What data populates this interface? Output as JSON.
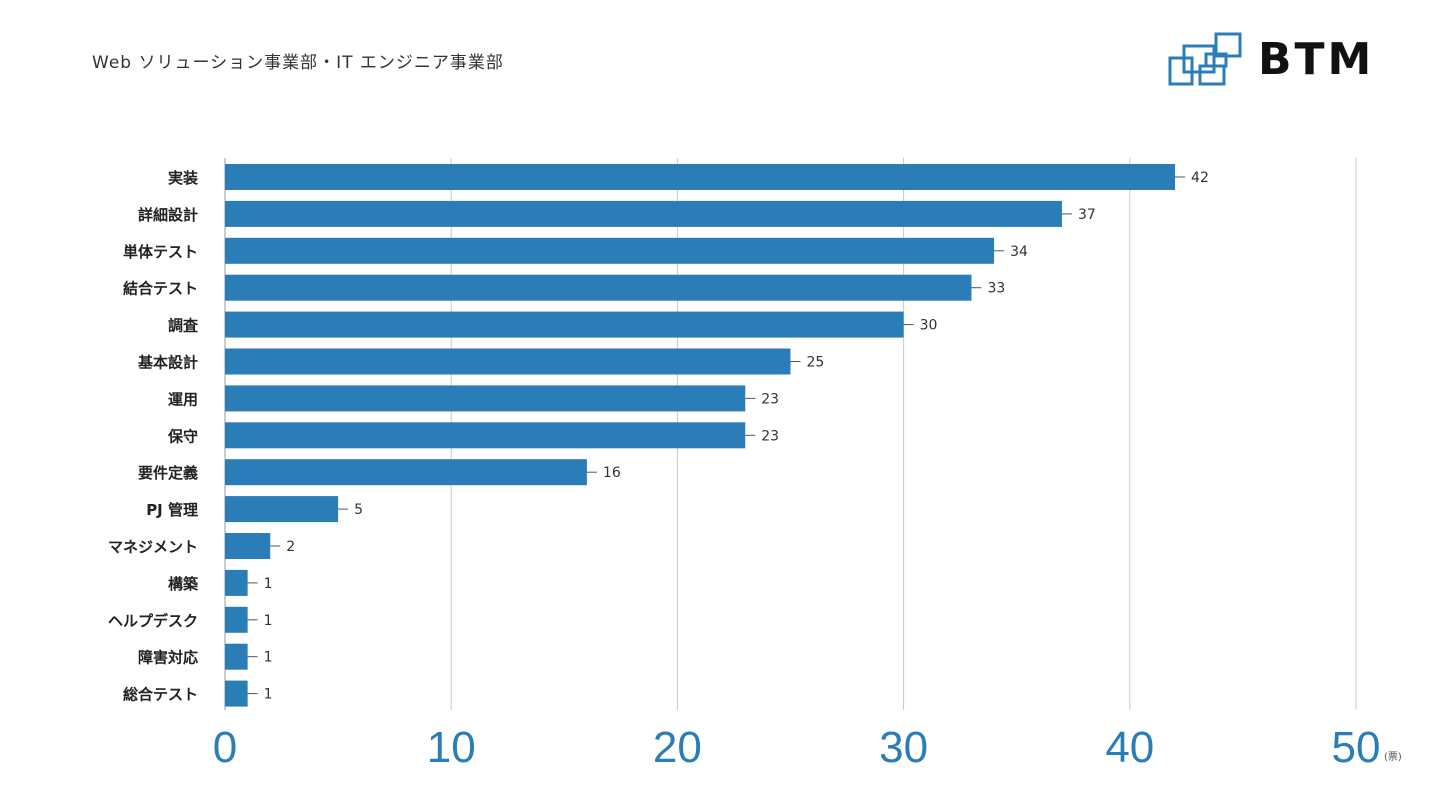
{
  "header": {
    "subtitle": "Web ソリューション事業部・IT エンジニア事業部",
    "logo_text": "BTM"
  },
  "colors": {
    "bar": "#2a7db6",
    "axis_text": "#2a7db6",
    "grid": "#c9c9c9"
  },
  "chart_data": {
    "type": "bar",
    "orientation": "horizontal",
    "categories": [
      "実装",
      "詳細設計",
      "単体テスト",
      "結合テスト",
      "調査",
      "基本設計",
      "運用",
      "保守",
      "要件定義",
      "PJ 管理",
      "マネジメント",
      "構築",
      "ヘルプデスク",
      "障害対応",
      "総合テスト"
    ],
    "values": [
      42,
      37,
      34,
      33,
      30,
      25,
      23,
      23,
      16,
      5,
      2,
      1,
      1,
      1,
      1
    ],
    "xlim": [
      0,
      50
    ],
    "xticks": [
      0,
      10,
      20,
      30,
      40,
      50
    ],
    "xunit": "(票)",
    "grid": "vertical-lines",
    "legend": "none"
  }
}
